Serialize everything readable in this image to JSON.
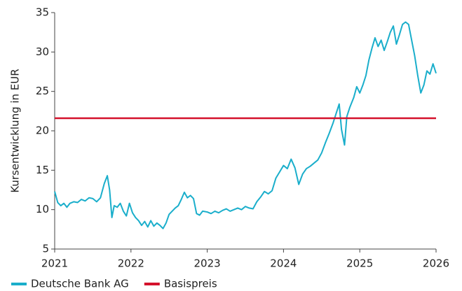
{
  "chart_data": {
    "type": "line",
    "y_label": "Kursentwicklung in EUR",
    "xlim": [
      2021,
      2026
    ],
    "xticks": [
      2021,
      2022,
      2023,
      2024,
      2025,
      2026
    ],
    "ylim": [
      5,
      35
    ],
    "yticks": [
      5,
      10,
      15,
      20,
      25,
      30,
      35
    ],
    "grid": false,
    "legend": "bottom-left",
    "series": [
      {
        "name": "Deutsche Bank AG",
        "color": "#1aaecb",
        "x": [
          2021.0,
          2021.04,
          2021.08,
          2021.12,
          2021.16,
          2021.2,
          2021.25,
          2021.3,
          2021.35,
          2021.4,
          2021.45,
          2021.5,
          2021.55,
          2021.6,
          2021.65,
          2021.69,
          2021.72,
          2021.75,
          2021.78,
          2021.82,
          2021.86,
          2021.9,
          2021.94,
          2021.98,
          2022.02,
          2022.06,
          2022.1,
          2022.14,
          2022.18,
          2022.22,
          2022.26,
          2022.3,
          2022.34,
          2022.38,
          2022.42,
          2022.46,
          2022.5,
          2022.54,
          2022.58,
          2022.62,
          2022.66,
          2022.7,
          2022.74,
          2022.78,
          2022.82,
          2022.86,
          2022.9,
          2022.94,
          2023.0,
          2023.05,
          2023.1,
          2023.15,
          2023.2,
          2023.25,
          2023.3,
          2023.35,
          2023.4,
          2023.45,
          2023.5,
          2023.55,
          2023.6,
          2023.65,
          2023.7,
          2023.75,
          2023.8,
          2023.85,
          2023.9,
          2023.95,
          2024.0,
          2024.05,
          2024.1,
          2024.15,
          2024.2,
          2024.25,
          2024.3,
          2024.35,
          2024.4,
          2024.45,
          2024.5,
          2024.55,
          2024.6,
          2024.65,
          2024.7,
          2024.73,
          2024.76,
          2024.8,
          2024.83,
          2024.87,
          2024.92,
          2024.96,
          2025.0,
          2025.04,
          2025.08,
          2025.12,
          2025.16,
          2025.2,
          2025.24,
          2025.28,
          2025.32,
          2025.36,
          2025.4,
          2025.44,
          2025.48,
          2025.52,
          2025.56,
          2025.6,
          2025.64,
          2025.68,
          2025.72,
          2025.76,
          2025.8,
          2025.84,
          2025.88,
          2025.92,
          2025.96,
          2026.0
        ],
        "values": [
          12.3,
          10.9,
          10.5,
          10.8,
          10.3,
          10.8,
          11.0,
          10.9,
          11.3,
          11.1,
          11.5,
          11.4,
          11.0,
          11.5,
          13.3,
          14.3,
          12.5,
          9.0,
          10.5,
          10.3,
          10.8,
          9.8,
          9.2,
          10.8,
          9.6,
          9.0,
          8.6,
          8.0,
          8.5,
          7.8,
          8.6,
          7.9,
          8.3,
          8.0,
          7.6,
          8.3,
          9.4,
          9.8,
          10.2,
          10.5,
          11.3,
          12.2,
          11.5,
          11.8,
          11.4,
          9.5,
          9.3,
          9.8,
          9.7,
          9.5,
          9.8,
          9.6,
          9.9,
          10.1,
          9.8,
          10.0,
          10.2,
          10.0,
          10.4,
          10.2,
          10.1,
          11.0,
          11.6,
          12.3,
          12.0,
          12.4,
          14.0,
          14.8,
          15.6,
          15.2,
          16.4,
          15.3,
          13.2,
          14.5,
          15.2,
          15.5,
          15.9,
          16.3,
          17.2,
          18.5,
          19.7,
          21.0,
          22.5,
          23.4,
          20.2,
          18.2,
          21.8,
          23.0,
          24.2,
          25.6,
          24.8,
          25.8,
          27.0,
          29.0,
          30.5,
          31.8,
          30.7,
          31.5,
          30.2,
          31.3,
          32.5,
          33.3,
          31.0,
          32.2,
          33.5,
          33.8,
          33.5,
          31.5,
          29.5,
          27.0,
          24.8,
          25.8,
          27.6,
          27.2,
          28.5,
          27.3
        ]
      },
      {
        "name": "Basispreis",
        "color": "#d4122c",
        "x": [
          2021,
          2026
        ],
        "values": [
          21.6,
          21.6
        ]
      }
    ]
  }
}
